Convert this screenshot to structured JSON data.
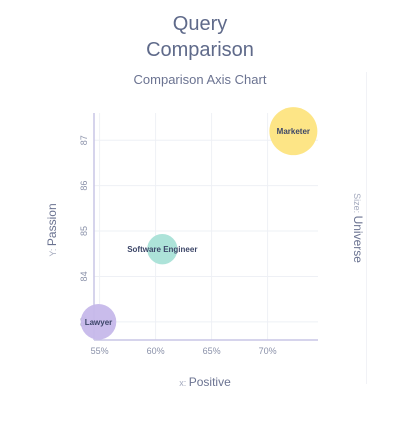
{
  "header": {
    "title_lines": [
      "Query",
      "Comparison"
    ],
    "subtitle": "Comparison Axis Chart"
  },
  "colors": {
    "axis": "#c9c5e6",
    "grid": "#eef0f5",
    "marketer": "#fde47f",
    "software_engineer": "#a9e2d7",
    "lawyer": "#c6b8ea"
  },
  "chart_data": {
    "type": "scatter",
    "title": "Comparison Axis Chart",
    "x_axis": {
      "prefix": "x",
      "label": "Positive",
      "ticks": [
        "55%",
        "60%",
        "65%",
        "70%"
      ],
      "tick_values": [
        55,
        60,
        65,
        70
      ],
      "range": [
        54.5,
        74.5
      ]
    },
    "y_axis": {
      "prefix": "Y",
      "label": "Passion",
      "ticks": [
        "83",
        "84",
        "85",
        "86",
        "87"
      ],
      "tick_values": [
        83,
        84,
        85,
        86,
        87
      ],
      "range": [
        82.6,
        87.6
      ]
    },
    "size_axis": {
      "prefix": "Size",
      "label": "Universe"
    },
    "grid": true,
    "points": [
      {
        "name": "Marketer",
        "x": 72.3,
        "y": 87.2,
        "size": 100,
        "color": "#fde47f"
      },
      {
        "name": "Software Engineer",
        "x": 60.6,
        "y": 84.6,
        "size": 40,
        "color": "#a9e2d7"
      },
      {
        "name": "Lawyer",
        "x": 54.9,
        "y": 83.0,
        "size": 55,
        "color": "#c6b8ea"
      }
    ]
  }
}
